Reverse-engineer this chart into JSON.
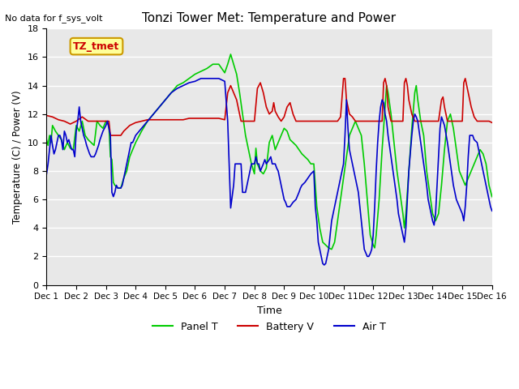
{
  "title": "Tonzi Tower Met: Temperature and Power",
  "subtitle": "No data for f_sys_volt",
  "xlabel": "Time",
  "ylabel": "Temperature (C) / Power (V)",
  "ylim": [
    0,
    18
  ],
  "xlim": [
    0,
    15
  ],
  "xtick_labels": [
    "Dec 1",
    "Dec 2",
    "Dec 3",
    "Dec 4",
    "Dec 5",
    "Dec 6",
    "Dec 7",
    "Dec 8",
    "Dec 9",
    "Dec 10",
    "Dec 11",
    "Dec 12",
    "Dec 13",
    "Dec 14",
    "Dec 15",
    "Dec 16"
  ],
  "ytick_values": [
    0,
    2,
    4,
    6,
    8,
    10,
    12,
    14,
    16,
    18
  ],
  "bg_color": "#e8e8e8",
  "panel_color": "#00cc00",
  "battery_color": "#cc0000",
  "air_color": "#0000cc",
  "legend_items": [
    "Panel T",
    "Battery V",
    "Air T"
  ],
  "annotation_text": "TZ_tmet",
  "annotation_box_color": "#ffff99",
  "annotation_box_edge": "#cc9900",
  "panel_T": [
    [
      0.0,
      10.2
    ],
    [
      0.05,
      9.8
    ],
    [
      0.1,
      10.5
    ],
    [
      0.15,
      10.0
    ],
    [
      0.2,
      11.2
    ],
    [
      0.3,
      10.8
    ],
    [
      0.4,
      10.5
    ],
    [
      0.5,
      10.2
    ],
    [
      0.6,
      9.5
    ],
    [
      0.7,
      10.0
    ],
    [
      0.8,
      9.6
    ],
    [
      0.9,
      9.5
    ],
    [
      1.0,
      11.2
    ],
    [
      1.1,
      10.8
    ],
    [
      1.2,
      11.5
    ],
    [
      1.3,
      10.5
    ],
    [
      1.4,
      10.2
    ],
    [
      1.5,
      10.0
    ],
    [
      1.6,
      9.8
    ],
    [
      1.7,
      11.5
    ],
    [
      1.8,
      11.2
    ],
    [
      1.9,
      11.0
    ],
    [
      2.0,
      11.5
    ],
    [
      2.1,
      11.2
    ],
    [
      2.15,
      9.0
    ],
    [
      2.2,
      8.8
    ],
    [
      2.25,
      7.2
    ],
    [
      2.3,
      7.0
    ],
    [
      2.4,
      6.8
    ],
    [
      2.5,
      6.8
    ],
    [
      2.6,
      7.5
    ],
    [
      2.7,
      8.0
    ],
    [
      2.8,
      9.0
    ],
    [
      2.9,
      9.5
    ],
    [
      3.0,
      10.0
    ],
    [
      3.2,
      10.8
    ],
    [
      3.4,
      11.5
    ],
    [
      3.6,
      12.0
    ],
    [
      3.8,
      12.5
    ],
    [
      4.0,
      13.0
    ],
    [
      4.2,
      13.5
    ],
    [
      4.4,
      14.0
    ],
    [
      4.6,
      14.2
    ],
    [
      4.8,
      14.5
    ],
    [
      5.0,
      14.8
    ],
    [
      5.2,
      15.0
    ],
    [
      5.4,
      15.2
    ],
    [
      5.6,
      15.5
    ],
    [
      5.8,
      15.5
    ],
    [
      6.0,
      14.9
    ],
    [
      6.1,
      15.5
    ],
    [
      6.2,
      16.2
    ],
    [
      6.3,
      15.5
    ],
    [
      6.4,
      14.8
    ],
    [
      6.5,
      13.5
    ],
    [
      6.6,
      12.0
    ],
    [
      6.7,
      10.5
    ],
    [
      6.8,
      9.5
    ],
    [
      6.9,
      8.5
    ],
    [
      7.0,
      7.8
    ],
    [
      7.05,
      9.6
    ],
    [
      7.1,
      8.5
    ],
    [
      7.2,
      8.0
    ],
    [
      7.3,
      7.8
    ],
    [
      7.4,
      8.2
    ],
    [
      7.5,
      10.0
    ],
    [
      7.6,
      10.5
    ],
    [
      7.7,
      9.5
    ],
    [
      7.8,
      10.0
    ],
    [
      7.9,
      10.5
    ],
    [
      8.0,
      11.0
    ],
    [
      8.1,
      10.8
    ],
    [
      8.2,
      10.2
    ],
    [
      8.3,
      10.0
    ],
    [
      8.4,
      9.8
    ],
    [
      8.5,
      9.5
    ],
    [
      8.6,
      9.2
    ],
    [
      8.7,
      9.0
    ],
    [
      8.8,
      8.8
    ],
    [
      8.9,
      8.5
    ],
    [
      9.0,
      8.5
    ],
    [
      9.1,
      5.5
    ],
    [
      9.2,
      4.0
    ],
    [
      9.3,
      3.0
    ],
    [
      9.4,
      2.8
    ],
    [
      9.5,
      2.6
    ],
    [
      9.6,
      2.5
    ],
    [
      9.7,
      3.0
    ],
    [
      9.8,
      4.5
    ],
    [
      9.9,
      6.0
    ],
    [
      10.0,
      7.5
    ],
    [
      10.1,
      9.0
    ],
    [
      10.2,
      10.5
    ],
    [
      10.3,
      11.0
    ],
    [
      10.4,
      11.5
    ],
    [
      10.5,
      11.0
    ],
    [
      10.6,
      10.5
    ],
    [
      10.7,
      8.5
    ],
    [
      10.8,
      6.0
    ],
    [
      10.9,
      3.5
    ],
    [
      11.0,
      2.8
    ],
    [
      11.05,
      2.6
    ],
    [
      11.1,
      3.5
    ],
    [
      11.2,
      6.0
    ],
    [
      11.3,
      9.5
    ],
    [
      11.4,
      12.5
    ],
    [
      11.45,
      14.0
    ],
    [
      11.5,
      13.5
    ],
    [
      11.6,
      12.0
    ],
    [
      11.7,
      10.0
    ],
    [
      11.8,
      8.0
    ],
    [
      11.9,
      6.5
    ],
    [
      12.0,
      5.0
    ],
    [
      12.05,
      4.0
    ],
    [
      12.1,
      5.0
    ],
    [
      12.2,
      8.0
    ],
    [
      12.3,
      11.0
    ],
    [
      12.4,
      13.5
    ],
    [
      12.45,
      14.0
    ],
    [
      12.5,
      13.0
    ],
    [
      12.6,
      11.5
    ],
    [
      12.7,
      10.5
    ],
    [
      12.8,
      8.0
    ],
    [
      12.9,
      6.5
    ],
    [
      13.0,
      5.0
    ],
    [
      13.1,
      4.5
    ],
    [
      13.2,
      5.0
    ],
    [
      13.3,
      7.0
    ],
    [
      13.4,
      9.5
    ],
    [
      13.5,
      11.5
    ],
    [
      13.6,
      12.0
    ],
    [
      13.7,
      11.0
    ],
    [
      13.8,
      9.5
    ],
    [
      13.9,
      8.0
    ],
    [
      14.0,
      7.5
    ],
    [
      14.1,
      7.0
    ],
    [
      14.2,
      7.5
    ],
    [
      14.3,
      8.0
    ],
    [
      14.4,
      8.5
    ],
    [
      14.5,
      9.0
    ],
    [
      14.6,
      9.5
    ],
    [
      14.7,
      9.2
    ],
    [
      14.8,
      8.5
    ],
    [
      14.9,
      7.0
    ],
    [
      15.0,
      6.2
    ]
  ],
  "battery_V": [
    [
      0.0,
      11.9
    ],
    [
      0.2,
      11.8
    ],
    [
      0.4,
      11.6
    ],
    [
      0.6,
      11.5
    ],
    [
      0.8,
      11.3
    ],
    [
      1.0,
      11.5
    ],
    [
      1.2,
      11.8
    ],
    [
      1.4,
      11.5
    ],
    [
      1.6,
      11.5
    ],
    [
      1.8,
      11.5
    ],
    [
      2.0,
      11.5
    ],
    [
      2.1,
      11.5
    ],
    [
      2.15,
      10.5
    ],
    [
      2.2,
      10.5
    ],
    [
      2.3,
      10.5
    ],
    [
      2.4,
      10.5
    ],
    [
      2.5,
      10.5
    ],
    [
      2.6,
      10.8
    ],
    [
      2.7,
      11.0
    ],
    [
      2.8,
      11.2
    ],
    [
      2.9,
      11.3
    ],
    [
      3.0,
      11.4
    ],
    [
      3.2,
      11.5
    ],
    [
      3.4,
      11.6
    ],
    [
      3.6,
      11.6
    ],
    [
      3.8,
      11.6
    ],
    [
      4.0,
      11.6
    ],
    [
      4.2,
      11.6
    ],
    [
      4.4,
      11.6
    ],
    [
      4.6,
      11.6
    ],
    [
      4.8,
      11.7
    ],
    [
      5.0,
      11.7
    ],
    [
      5.2,
      11.7
    ],
    [
      5.4,
      11.7
    ],
    [
      5.6,
      11.7
    ],
    [
      5.8,
      11.7
    ],
    [
      6.0,
      11.6
    ],
    [
      6.1,
      13.5
    ],
    [
      6.2,
      14.0
    ],
    [
      6.3,
      13.5
    ],
    [
      6.4,
      13.0
    ],
    [
      6.5,
      12.0
    ],
    [
      6.55,
      11.5
    ],
    [
      6.6,
      11.5
    ],
    [
      6.7,
      11.5
    ],
    [
      6.8,
      11.5
    ],
    [
      6.9,
      11.5
    ],
    [
      7.0,
      11.5
    ],
    [
      7.1,
      13.8
    ],
    [
      7.2,
      14.2
    ],
    [
      7.3,
      13.5
    ],
    [
      7.4,
      12.5
    ],
    [
      7.5,
      12.0
    ],
    [
      7.6,
      12.2
    ],
    [
      7.65,
      12.8
    ],
    [
      7.7,
      12.2
    ],
    [
      7.8,
      11.8
    ],
    [
      7.9,
      11.5
    ],
    [
      8.0,
      11.8
    ],
    [
      8.1,
      12.5
    ],
    [
      8.2,
      12.8
    ],
    [
      8.3,
      12.0
    ],
    [
      8.4,
      11.5
    ],
    [
      8.5,
      11.5
    ],
    [
      8.6,
      11.5
    ],
    [
      8.7,
      11.5
    ],
    [
      8.8,
      11.5
    ],
    [
      8.9,
      11.5
    ],
    [
      9.0,
      11.5
    ],
    [
      9.1,
      11.5
    ],
    [
      9.2,
      11.5
    ],
    [
      9.3,
      11.5
    ],
    [
      9.4,
      11.5
    ],
    [
      9.5,
      11.5
    ],
    [
      9.6,
      11.5
    ],
    [
      9.7,
      11.5
    ],
    [
      9.8,
      11.5
    ],
    [
      9.9,
      11.8
    ],
    [
      10.0,
      14.5
    ],
    [
      10.05,
      14.5
    ],
    [
      10.1,
      13.0
    ],
    [
      10.2,
      12.0
    ],
    [
      10.3,
      11.8
    ],
    [
      10.4,
      11.5
    ],
    [
      10.5,
      11.5
    ],
    [
      10.6,
      11.5
    ],
    [
      10.7,
      11.5
    ],
    [
      10.8,
      11.5
    ],
    [
      10.9,
      11.5
    ],
    [
      11.0,
      11.5
    ],
    [
      11.1,
      11.5
    ],
    [
      11.2,
      11.5
    ],
    [
      11.3,
      11.5
    ],
    [
      11.35,
      14.2
    ],
    [
      11.4,
      14.5
    ],
    [
      11.45,
      14.0
    ],
    [
      11.5,
      12.5
    ],
    [
      11.6,
      11.5
    ],
    [
      11.7,
      11.5
    ],
    [
      11.8,
      11.5
    ],
    [
      11.9,
      11.5
    ],
    [
      12.0,
      11.5
    ],
    [
      12.05,
      14.2
    ],
    [
      12.1,
      14.5
    ],
    [
      12.15,
      14.0
    ],
    [
      12.2,
      13.0
    ],
    [
      12.3,
      12.0
    ],
    [
      12.4,
      11.5
    ],
    [
      12.5,
      11.5
    ],
    [
      12.6,
      11.5
    ],
    [
      12.7,
      11.5
    ],
    [
      12.8,
      11.5
    ],
    [
      12.9,
      11.5
    ],
    [
      13.0,
      11.5
    ],
    [
      13.1,
      11.5
    ],
    [
      13.2,
      11.5
    ],
    [
      13.3,
      13.0
    ],
    [
      13.35,
      13.2
    ],
    [
      13.4,
      12.5
    ],
    [
      13.5,
      11.5
    ],
    [
      13.6,
      11.5
    ],
    [
      13.7,
      11.5
    ],
    [
      13.8,
      11.5
    ],
    [
      13.9,
      11.5
    ],
    [
      14.0,
      11.5
    ],
    [
      14.05,
      14.2
    ],
    [
      14.1,
      14.5
    ],
    [
      14.15,
      14.0
    ],
    [
      14.2,
      13.5
    ],
    [
      14.3,
      12.5
    ],
    [
      14.4,
      11.8
    ],
    [
      14.5,
      11.5
    ],
    [
      14.6,
      11.5
    ],
    [
      14.7,
      11.5
    ],
    [
      14.8,
      11.5
    ],
    [
      14.9,
      11.5
    ],
    [
      15.0,
      11.4
    ]
  ],
  "air_T": [
    [
      0.0,
      7.8
    ],
    [
      0.05,
      8.5
    ],
    [
      0.1,
      9.5
    ],
    [
      0.15,
      10.5
    ],
    [
      0.2,
      9.8
    ],
    [
      0.25,
      9.2
    ],
    [
      0.3,
      9.5
    ],
    [
      0.35,
      10.0
    ],
    [
      0.4,
      10.5
    ],
    [
      0.45,
      10.5
    ],
    [
      0.5,
      10.2
    ],
    [
      0.55,
      9.5
    ],
    [
      0.6,
      10.8
    ],
    [
      0.65,
      10.5
    ],
    [
      0.7,
      10.0
    ],
    [
      0.75,
      10.2
    ],
    [
      0.8,
      9.8
    ],
    [
      0.85,
      9.5
    ],
    [
      0.9,
      9.5
    ],
    [
      0.95,
      9.0
    ],
    [
      1.0,
      10.8
    ],
    [
      1.05,
      11.5
    ],
    [
      1.1,
      12.5
    ],
    [
      1.15,
      11.5
    ],
    [
      1.2,
      11.0
    ],
    [
      1.25,
      10.5
    ],
    [
      1.3,
      10.2
    ],
    [
      1.35,
      9.8
    ],
    [
      1.4,
      9.5
    ],
    [
      1.45,
      9.2
    ],
    [
      1.5,
      9.0
    ],
    [
      1.55,
      9.0
    ],
    [
      1.6,
      9.0
    ],
    [
      1.65,
      9.2
    ],
    [
      1.7,
      9.5
    ],
    [
      1.75,
      9.8
    ],
    [
      1.8,
      10.2
    ],
    [
      1.85,
      10.5
    ],
    [
      1.9,
      10.8
    ],
    [
      1.95,
      11.0
    ],
    [
      2.0,
      11.2
    ],
    [
      2.05,
      11.5
    ],
    [
      2.1,
      11.0
    ],
    [
      2.15,
      10.5
    ],
    [
      2.2,
      6.5
    ],
    [
      2.25,
      6.2
    ],
    [
      2.3,
      6.5
    ],
    [
      2.35,
      7.0
    ],
    [
      2.4,
      6.8
    ],
    [
      2.45,
      6.8
    ],
    [
      2.5,
      6.8
    ],
    [
      2.55,
      7.0
    ],
    [
      2.6,
      7.5
    ],
    [
      2.65,
      8.0
    ],
    [
      2.7,
      8.5
    ],
    [
      2.75,
      9.0
    ],
    [
      2.8,
      9.5
    ],
    [
      2.85,
      10.0
    ],
    [
      2.9,
      10.0
    ],
    [
      3.0,
      10.5
    ],
    [
      3.2,
      11.0
    ],
    [
      3.4,
      11.5
    ],
    [
      3.6,
      12.0
    ],
    [
      3.8,
      12.5
    ],
    [
      4.0,
      13.0
    ],
    [
      4.2,
      13.5
    ],
    [
      4.4,
      13.8
    ],
    [
      4.6,
      14.0
    ],
    [
      4.8,
      14.2
    ],
    [
      5.0,
      14.3
    ],
    [
      5.2,
      14.5
    ],
    [
      5.4,
      14.5
    ],
    [
      5.6,
      14.5
    ],
    [
      5.8,
      14.5
    ],
    [
      6.0,
      14.3
    ],
    [
      6.1,
      11.5
    ],
    [
      6.2,
      5.4
    ],
    [
      6.3,
      7.0
    ],
    [
      6.35,
      8.5
    ],
    [
      6.4,
      8.5
    ],
    [
      6.5,
      8.5
    ],
    [
      6.55,
      8.5
    ],
    [
      6.6,
      6.5
    ],
    [
      6.65,
      6.5
    ],
    [
      6.7,
      6.5
    ],
    [
      6.75,
      7.0
    ],
    [
      6.8,
      7.5
    ],
    [
      6.85,
      8.0
    ],
    [
      6.9,
      8.5
    ],
    [
      6.95,
      8.5
    ],
    [
      7.0,
      8.5
    ],
    [
      7.05,
      9.0
    ],
    [
      7.1,
      8.5
    ],
    [
      7.15,
      8.5
    ],
    [
      7.2,
      8.0
    ],
    [
      7.3,
      8.5
    ],
    [
      7.35,
      8.8
    ],
    [
      7.4,
      8.5
    ],
    [
      7.5,
      8.8
    ],
    [
      7.55,
      9.0
    ],
    [
      7.6,
      8.5
    ],
    [
      7.65,
      8.5
    ],
    [
      7.7,
      8.5
    ],
    [
      7.75,
      8.2
    ],
    [
      7.8,
      8.0
    ],
    [
      7.85,
      7.5
    ],
    [
      7.9,
      7.0
    ],
    [
      7.95,
      6.5
    ],
    [
      8.0,
      6.0
    ],
    [
      8.05,
      5.8
    ],
    [
      8.1,
      5.5
    ],
    [
      8.2,
      5.5
    ],
    [
      8.3,
      5.8
    ],
    [
      8.4,
      6.0
    ],
    [
      8.5,
      6.5
    ],
    [
      8.55,
      6.8
    ],
    [
      8.6,
      7.0
    ],
    [
      8.7,
      7.2
    ],
    [
      8.8,
      7.5
    ],
    [
      8.9,
      7.8
    ],
    [
      9.0,
      8.0
    ],
    [
      9.05,
      5.5
    ],
    [
      9.1,
      4.5
    ],
    [
      9.15,
      3.0
    ],
    [
      9.2,
      2.5
    ],
    [
      9.25,
      2.0
    ],
    [
      9.3,
      1.5
    ],
    [
      9.35,
      1.4
    ],
    [
      9.4,
      1.5
    ],
    [
      9.45,
      2.0
    ],
    [
      9.5,
      2.5
    ],
    [
      9.55,
      3.5
    ],
    [
      9.6,
      4.5
    ],
    [
      9.7,
      5.5
    ],
    [
      9.8,
      6.5
    ],
    [
      9.9,
      7.5
    ],
    [
      10.0,
      8.5
    ],
    [
      10.05,
      10.5
    ],
    [
      10.1,
      13.0
    ],
    [
      10.15,
      11.0
    ],
    [
      10.2,
      9.5
    ],
    [
      10.3,
      8.5
    ],
    [
      10.4,
      7.5
    ],
    [
      10.5,
      6.5
    ],
    [
      10.55,
      5.5
    ],
    [
      10.6,
      4.5
    ],
    [
      10.65,
      3.5
    ],
    [
      10.7,
      2.5
    ],
    [
      10.8,
      2.0
    ],
    [
      10.85,
      2.0
    ],
    [
      10.9,
      2.2
    ],
    [
      10.95,
      2.5
    ],
    [
      11.0,
      3.5
    ],
    [
      11.05,
      5.5
    ],
    [
      11.1,
      8.0
    ],
    [
      11.15,
      10.0
    ],
    [
      11.2,
      11.5
    ],
    [
      11.25,
      12.5
    ],
    [
      11.3,
      13.0
    ],
    [
      11.35,
      12.8
    ],
    [
      11.4,
      12.0
    ],
    [
      11.45,
      11.5
    ],
    [
      11.5,
      10.5
    ],
    [
      11.6,
      9.0
    ],
    [
      11.7,
      7.5
    ],
    [
      11.8,
      6.0
    ],
    [
      11.85,
      5.0
    ],
    [
      11.9,
      4.5
    ],
    [
      11.95,
      4.0
    ],
    [
      12.0,
      3.5
    ],
    [
      12.05,
      3.0
    ],
    [
      12.1,
      4.0
    ],
    [
      12.15,
      6.0
    ],
    [
      12.2,
      8.0
    ],
    [
      12.3,
      10.5
    ],
    [
      12.35,
      11.5
    ],
    [
      12.4,
      12.0
    ],
    [
      12.45,
      11.8
    ],
    [
      12.5,
      11.5
    ],
    [
      12.6,
      10.0
    ],
    [
      12.7,
      8.5
    ],
    [
      12.8,
      7.0
    ],
    [
      12.85,
      6.0
    ],
    [
      12.9,
      5.5
    ],
    [
      12.95,
      5.0
    ],
    [
      13.0,
      4.5
    ],
    [
      13.05,
      4.2
    ],
    [
      13.1,
      5.0
    ],
    [
      13.15,
      7.0
    ],
    [
      13.2,
      9.0
    ],
    [
      13.25,
      11.0
    ],
    [
      13.3,
      11.8
    ],
    [
      13.35,
      11.5
    ],
    [
      13.4,
      11.2
    ],
    [
      13.5,
      10.0
    ],
    [
      13.6,
      8.5
    ],
    [
      13.7,
      7.0
    ],
    [
      13.8,
      6.0
    ],
    [
      13.9,
      5.5
    ],
    [
      14.0,
      5.0
    ],
    [
      14.05,
      4.5
    ],
    [
      14.1,
      5.5
    ],
    [
      14.15,
      7.0
    ],
    [
      14.2,
      9.0
    ],
    [
      14.25,
      10.5
    ],
    [
      14.3,
      10.5
    ],
    [
      14.35,
      10.5
    ],
    [
      14.4,
      10.2
    ],
    [
      14.5,
      10.0
    ],
    [
      14.6,
      9.0
    ],
    [
      14.7,
      8.0
    ],
    [
      14.8,
      7.0
    ],
    [
      14.85,
      6.5
    ],
    [
      14.9,
      6.0
    ],
    [
      14.95,
      5.5
    ],
    [
      15.0,
      5.2
    ]
  ]
}
